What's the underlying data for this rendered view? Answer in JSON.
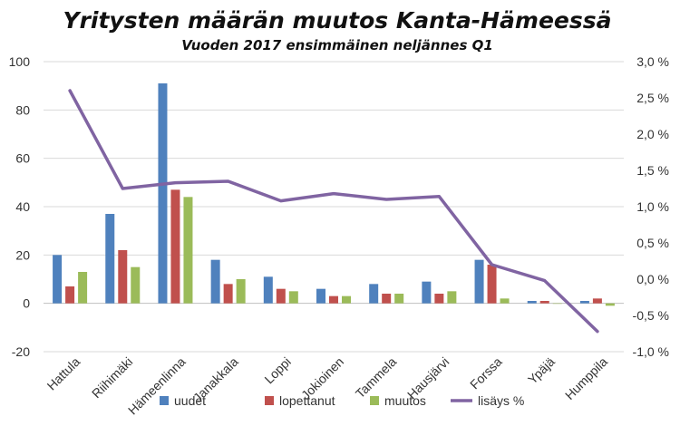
{
  "chart_data": {
    "type": "bar",
    "title": "Yritysten määrän muutos Kanta-Hämeessä",
    "subtitle": "Vuoden 2017 ensimmäinen neljännes Q1",
    "categories": [
      "Hattula",
      "Riihimäki",
      "Hämeenlinna",
      "Janakkala",
      "Loppi",
      "Jokioinen",
      "Tammela",
      "Hausjärvi",
      "Forssa",
      "Ypäjä",
      "Humppila"
    ],
    "series": [
      {
        "name": "uudet",
        "color": "#4f81bd",
        "type": "bar",
        "axis": "left",
        "values": [
          20,
          37,
          91,
          18,
          11,
          6,
          8,
          9,
          18,
          1,
          1
        ]
      },
      {
        "name": "lopettanut",
        "color": "#c0504d",
        "type": "bar",
        "axis": "left",
        "values": [
          7,
          22,
          47,
          8,
          6,
          3,
          4,
          4,
          16,
          1,
          2
        ]
      },
      {
        "name": "muutos",
        "color": "#9bbb59",
        "type": "bar",
        "axis": "left",
        "values": [
          13,
          15,
          44,
          10,
          5,
          3,
          4,
          5,
          2,
          0,
          -1
        ]
      },
      {
        "name": "lisäys %",
        "color": "#8064a2",
        "type": "line",
        "axis": "right",
        "values": [
          2.6,
          1.25,
          1.33,
          1.35,
          1.08,
          1.18,
          1.1,
          1.14,
          0.2,
          -0.02,
          -0.72
        ]
      }
    ],
    "y_left": {
      "min": -20,
      "max": 100,
      "step": 20,
      "tick_labels": [
        "-20",
        "0",
        "20",
        "40",
        "60",
        "80",
        "100"
      ]
    },
    "y_right": {
      "min": -1.0,
      "max": 3.0,
      "step": 0.5,
      "tick_labels": [
        "-1,0 %",
        "-0,5 %",
        "0,0 %",
        "0,5 %",
        "1,0 %",
        "1,5 %",
        "2,0 %",
        "2,5 %",
        "3,0 %"
      ]
    },
    "grid": true,
    "legend_position": "bottom"
  }
}
